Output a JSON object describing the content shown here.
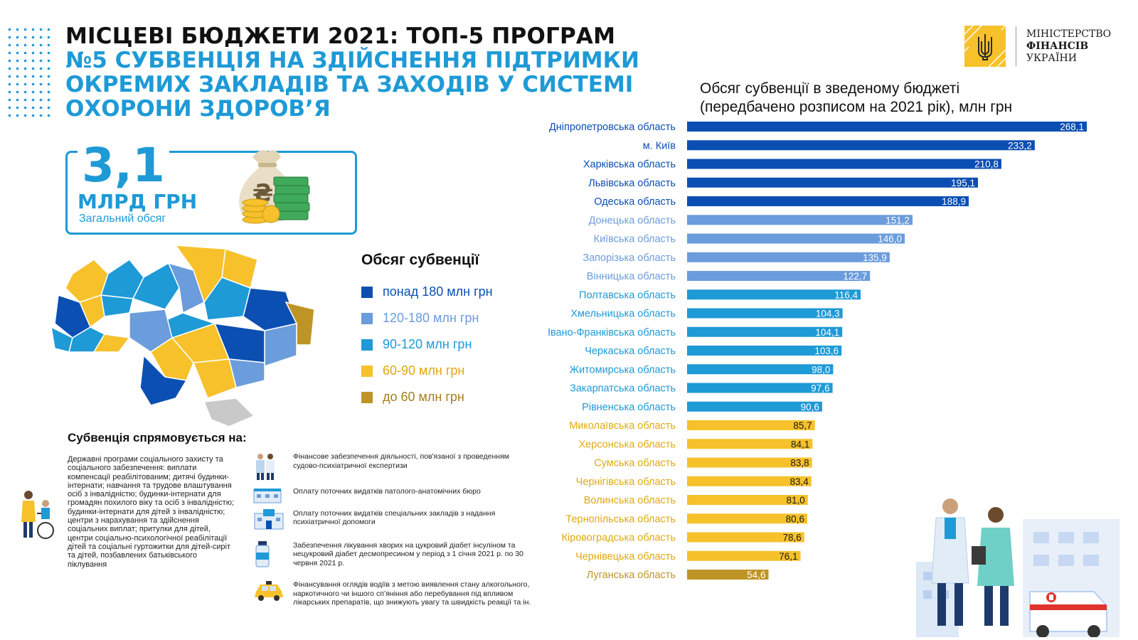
{
  "title": {
    "main": "МІСЦЕВІ БЮДЖЕТИ 2021: ТОП-5 ПРОГРАМ",
    "sub_line1": "№5 СУБВЕНЦІЯ НА ЗДІЙСНЕННЯ ПІДТРИМКИ",
    "sub_line2": "ОКРЕМИХ ЗАКЛАДІВ ТА ЗАХОДІВ У СИСТЕМІ",
    "sub_line3": "ОХОРОНИ ЗДОРОВ’Я"
  },
  "logo": {
    "line1": "МІНІСТЕРСТВО",
    "line2": "ФІНАНСІВ",
    "line3": "УКРАЇНИ"
  },
  "total": {
    "value": "3,1",
    "unit": "МЛРД ГРН",
    "label": "Загальний обсяг"
  },
  "legend": {
    "title": "Обсяг субвенції",
    "items": [
      {
        "label": "понад 180 млн грн",
        "color": "#0b4fb3"
      },
      {
        "label": "120-180 млн грн",
        "color": "#6b9cdb"
      },
      {
        "label": "90-120 млн грн",
        "color": "#1e9ad6"
      },
      {
        "label": "60-90 млн грн",
        "color": "#f6c12b"
      },
      {
        "label": "до 60 млн грн",
        "color": "#bf9426"
      }
    ]
  },
  "usage": {
    "title": "Субвенція спрямовується на:",
    "left_text": "Державні програми соціального захисту та соціального забезпечення: виплати компенсації реабілітованим; дитячі будинки-інтернати; навчання та трудове влаштування осіб з інвалідністю; будинки-інтернати для громадян похилого віку та осіб з інвалідністю; будинки-інтернати для дітей з інвалідністю; центри з нарахування та здійснення соціальних виплат; притулки для дітей, центри соціально-психологічної реабілітації дітей та соціальні гуртожитки для дітей-сиріт та дітей, позбавлених батьківського піклування",
    "items": [
      {
        "text": "Фінансове забезпечення діяльності, пов'язаної з проведенням судово-психіатричної експертизи",
        "icon": "doctors-icon"
      },
      {
        "text": "Оплату поточних видатків патолого-анатомічних бюро",
        "icon": "building-icon"
      },
      {
        "text": "Оплату поточних видатків спеціальних закладів з надання психіатричної допомоги",
        "icon": "hospital-icon"
      },
      {
        "text": "Забезпечення лікування хворих на цукровий діабет інсуліном та нецукровий діабет десмопресином у період з 1 січня 2021 р. по 30 червня 2021 р.",
        "icon": "medicine-vial-icon"
      },
      {
        "text": "Фінансування оглядів водіїв з метою виявлення стану алкогольного, наркотичного чи іншого сп’яніння або перебування під впливом лікарських препаратів, що знижують увагу та швидкість реакції та ін.",
        "icon": "taxi-icon"
      }
    ]
  },
  "chart_data": {
    "type": "bar",
    "orientation": "horizontal",
    "title_line1": "Обсяг субвенції в зведеному бюджеті",
    "title_line2": "(передбачено розписом на 2021 рік), млн грн",
    "categories": [
      "Дніпропетровська область",
      "м. Київ",
      "Харківська область",
      "Львівська область",
      "Одеська область",
      "Донецька область",
      "Київська область",
      "Запорізька область",
      "Вінницька область",
      "Полтавська область",
      "Хмельницька область",
      "Івано-Франківська область",
      "Черкаська область",
      "Житомирська  область",
      "Закарпатська область",
      "Рівненська область",
      "Миколаївська область",
      "Херсонська область",
      "Сумська область",
      "Чернігівська область",
      "Волинська область",
      "Тернопільська область",
      "Кіровоградська область",
      "Чернівецька область",
      "Луганська область"
    ],
    "values": [
      268.1,
      233.2,
      210.8,
      195.1,
      188.9,
      151.2,
      146.0,
      135.9,
      122.7,
      116.4,
      104.3,
      104.1,
      103.6,
      98.0,
      97.6,
      90.6,
      85.7,
      84.1,
      83.8,
      83.4,
      81.0,
      80.6,
      78.6,
      76.1,
      54.6
    ],
    "value_labels": [
      "268,1",
      "233,2",
      "210,8",
      "195,1",
      "188,9",
      "151,2",
      "146,0",
      "135,9",
      "122,7",
      "116,4",
      "104,3",
      "104,1",
      "103,6",
      "98,0",
      "97,6",
      "90,6",
      "85,7",
      "84,1",
      "83,8",
      "83,4",
      "81,0",
      "80,6",
      "78,6",
      "76,1",
      "54,6"
    ],
    "colors": {
      "over_180": "#0b4fb3",
      "120_180": "#6b9cdb",
      "90_120": "#1e9ad6",
      "60_90": "#f6c12b",
      "under_60": "#bf9426"
    },
    "grid": false,
    "legend": "none"
  }
}
